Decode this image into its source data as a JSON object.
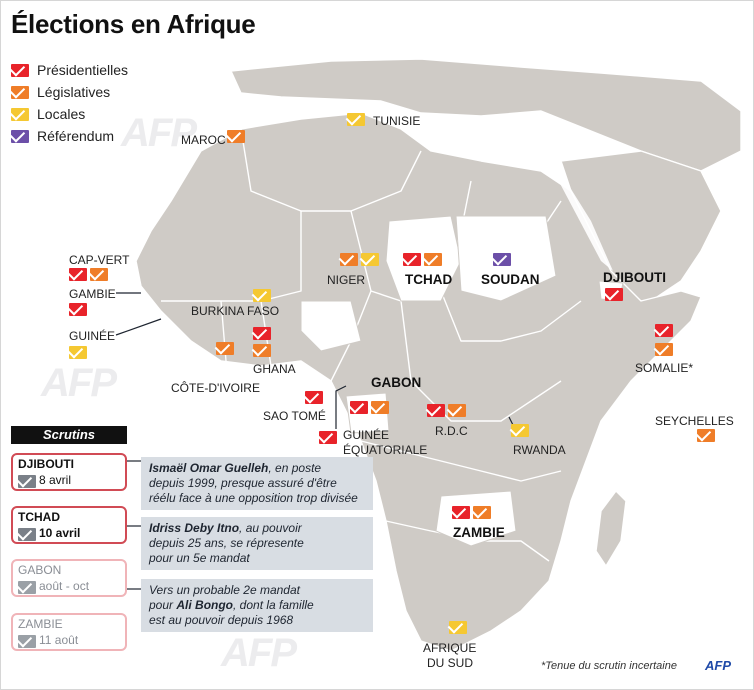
{
  "title": "Élections en Afrique",
  "legend": [
    {
      "label": "Présidentielles",
      "color": "#e8232a"
    },
    {
      "label": "Législatives",
      "color": "#ef7d28"
    },
    {
      "label": "Locales",
      "color": "#f5c832"
    },
    {
      "label": "Référendum",
      "color": "#6c4fa8"
    }
  ],
  "countries": {
    "maroc": "MAROC",
    "tunisie": "TUNISIE",
    "cap_vert": "CAP-VERT",
    "gambie": "GAMBIE",
    "guinee": "GUINÉE",
    "burkina_faso": "BURKINA FASO",
    "niger": "NIGER",
    "tchad": "TCHAD",
    "soudan": "SOUDAN",
    "djibouti": "DJIBOUTI",
    "cote_divoire": "CÔTE-D'IVOIRE",
    "ghana": "GHANA",
    "gabon": "GABON",
    "sao_tome": "SAO TOMÉ",
    "guinee_eq_1": "GUINÉE",
    "guinee_eq_2": "ÉQUATORIALE",
    "rdc": "R.D.C",
    "rwanda": "RWANDA",
    "somalie": "SOMALIE*",
    "seychelles": "SEYCHELLES",
    "zambie": "ZAMBIE",
    "afrique_sud_1": "AFRIQUE",
    "afrique_sud_2": "DU SUD"
  },
  "timeline": {
    "header": "Scrutins",
    "items": [
      {
        "country": "DJIBOUTI",
        "date": "8 avril"
      },
      {
        "country": "TCHAD",
        "date": "10 avril"
      },
      {
        "country": "GABON",
        "date": "août - oct"
      },
      {
        "country": "ZAMBIE",
        "date": "11 août"
      }
    ],
    "notes": {
      "djibouti": {
        "name": "Ismaël Omar Guelleh",
        "rest1": ", en poste",
        "rest2": "depuis 1999, presque assuré d'être",
        "rest3": "réélu face à une opposition trop divisée"
      },
      "tchad": {
        "name": "Idriss Deby Itno",
        "rest1": ", au pouvoir",
        "rest2": "depuis 25 ans, se répresente",
        "rest3": "pour  un 5e mandat"
      },
      "gabon": {
        "line1": "Vers un probable 2e mandat",
        "pre2": "pour ",
        "name": "Ali Bongo",
        "rest2": ", dont la famille",
        "rest3": "est au pouvoir depuis 1968"
      }
    }
  },
  "footer": "*Tenue du scrutin incertaine",
  "logo": "AFP",
  "watermark": "AFP"
}
